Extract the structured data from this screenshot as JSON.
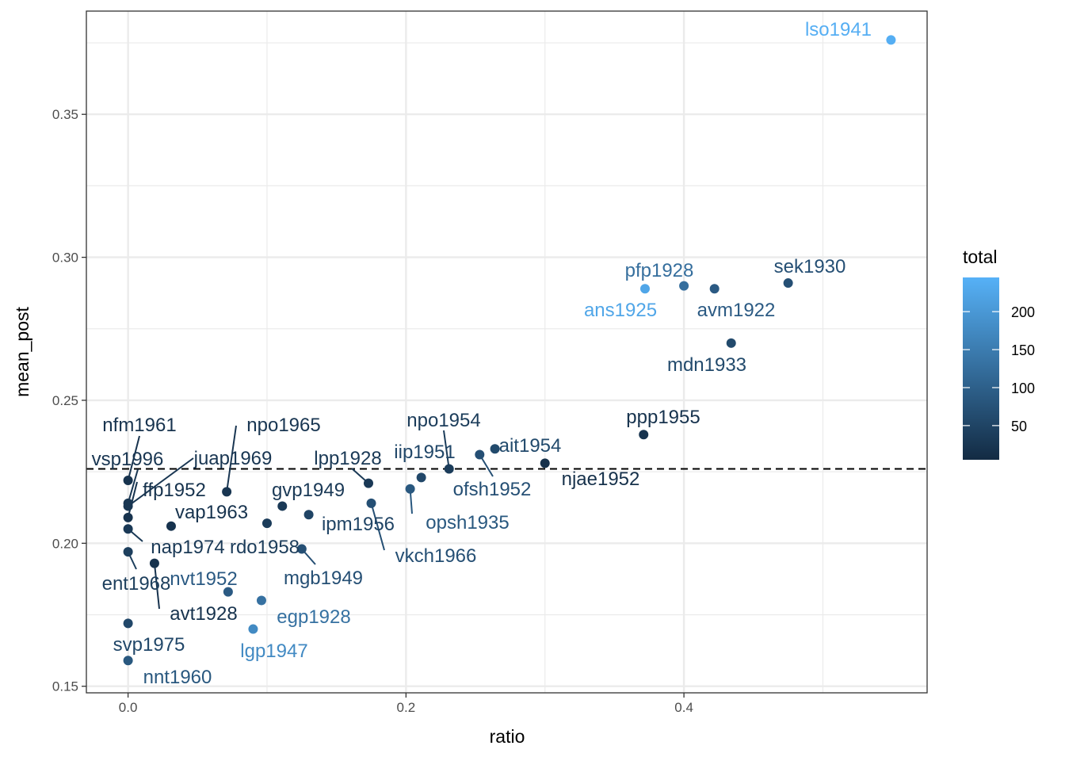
{
  "chart_data": {
    "type": "scatter",
    "xlabel": "ratio",
    "ylabel": "mean_post",
    "xlim": [
      -0.03,
      0.575
    ],
    "ylim": [
      0.1477,
      0.3861
    ],
    "x_ticks": [
      0.0,
      0.2,
      0.4
    ],
    "x_tick_labels": [
      "0.0",
      "0.2",
      "0.4"
    ],
    "y_ticks": [
      0.15,
      0.2,
      0.25,
      0.3,
      0.35
    ],
    "y_tick_labels": [
      "0.15",
      "0.20",
      "0.25",
      "0.30",
      "0.35"
    ],
    "reference_line": {
      "orientation": "horizontal",
      "y": 0.226,
      "style": "dashed"
    },
    "grid": true,
    "legend": {
      "title": "total",
      "position": "right",
      "type": "colorbar",
      "range": [
        5,
        245
      ],
      "ticks": [
        50,
        100,
        150,
        200
      ],
      "tick_labels": [
        "50",
        "100",
        "150",
        "200"
      ],
      "color_low": "#132B43",
      "color_high": "#56B1F7"
    },
    "points": [
      {
        "label": "lso1941",
        "x": 0.549,
        "y": 0.376,
        "total": 240
      },
      {
        "label": "pfp1928",
        "x": 0.4,
        "y": 0.29,
        "total": 125
      },
      {
        "label": "ans1925",
        "x": 0.372,
        "y": 0.289,
        "total": 225
      },
      {
        "label": "avm1922",
        "x": 0.422,
        "y": 0.289,
        "total": 90
      },
      {
        "label": "sek1930",
        "x": 0.475,
        "y": 0.291,
        "total": 70
      },
      {
        "label": "mdn1933",
        "x": 0.434,
        "y": 0.27,
        "total": 60
      },
      {
        "label": "ppp1955",
        "x": 0.371,
        "y": 0.238,
        "total": 20
      },
      {
        "label": "njae1952",
        "x": 0.3,
        "y": 0.228,
        "total": 15
      },
      {
        "label": "ait1954",
        "x": 0.264,
        "y": 0.233,
        "total": 60
      },
      {
        "label": "ofsh1952",
        "x": 0.253,
        "y": 0.231,
        "total": 70
      },
      {
        "label": "npo1954",
        "x": 0.231,
        "y": 0.226,
        "total": 35
      },
      {
        "label": "iip1951",
        "x": 0.211,
        "y": 0.223,
        "total": 55
      },
      {
        "label": "opsh1935",
        "x": 0.203,
        "y": 0.219,
        "total": 85
      },
      {
        "label": "lpp1928",
        "x": 0.173,
        "y": 0.221,
        "total": 30
      },
      {
        "label": "vkch1966",
        "x": 0.175,
        "y": 0.214,
        "total": 70
      },
      {
        "label": "ipm1956",
        "x": 0.13,
        "y": 0.21,
        "total": 50
      },
      {
        "label": "gvp1949",
        "x": 0.111,
        "y": 0.213,
        "total": 30
      },
      {
        "label": "rdo1958",
        "x": 0.1,
        "y": 0.207,
        "total": 35
      },
      {
        "label": "mgb1949",
        "x": 0.125,
        "y": 0.198,
        "total": 70
      },
      {
        "label": "npo1965",
        "x": 0.071,
        "y": 0.218,
        "total": 25
      },
      {
        "label": "vap1963",
        "x": 0.031,
        "y": 0.206,
        "total": 20
      },
      {
        "label": "nvt1952",
        "x": 0.072,
        "y": 0.183,
        "total": 90
      },
      {
        "label": "egp1928",
        "x": 0.096,
        "y": 0.18,
        "total": 130
      },
      {
        "label": "lgp1947",
        "x": 0.09,
        "y": 0.17,
        "total": 175
      },
      {
        "label": "avt1928",
        "x": 0.019,
        "y": 0.193,
        "total": 20
      },
      {
        "label": "nfm1961",
        "x": 0.0,
        "y": 0.222,
        "total": 20
      },
      {
        "label": "vsp1996",
        "x": 0.0,
        "y": 0.214,
        "total": 25
      },
      {
        "label": "juap1969",
        "x": 0.0,
        "y": 0.213,
        "total": 25
      },
      {
        "label": "ffp1952",
        "x": 0.0,
        "y": 0.209,
        "total": 20
      },
      {
        "label": "nap1974",
        "x": 0.0,
        "y": 0.205,
        "total": 30
      },
      {
        "label": "ent1968",
        "x": 0.0,
        "y": 0.197,
        "total": 40
      },
      {
        "label": "svp1975",
        "x": 0.0,
        "y": 0.172,
        "total": 55
      },
      {
        "label": "nnt1960",
        "x": 0.0,
        "y": 0.159,
        "total": 85
      }
    ]
  }
}
